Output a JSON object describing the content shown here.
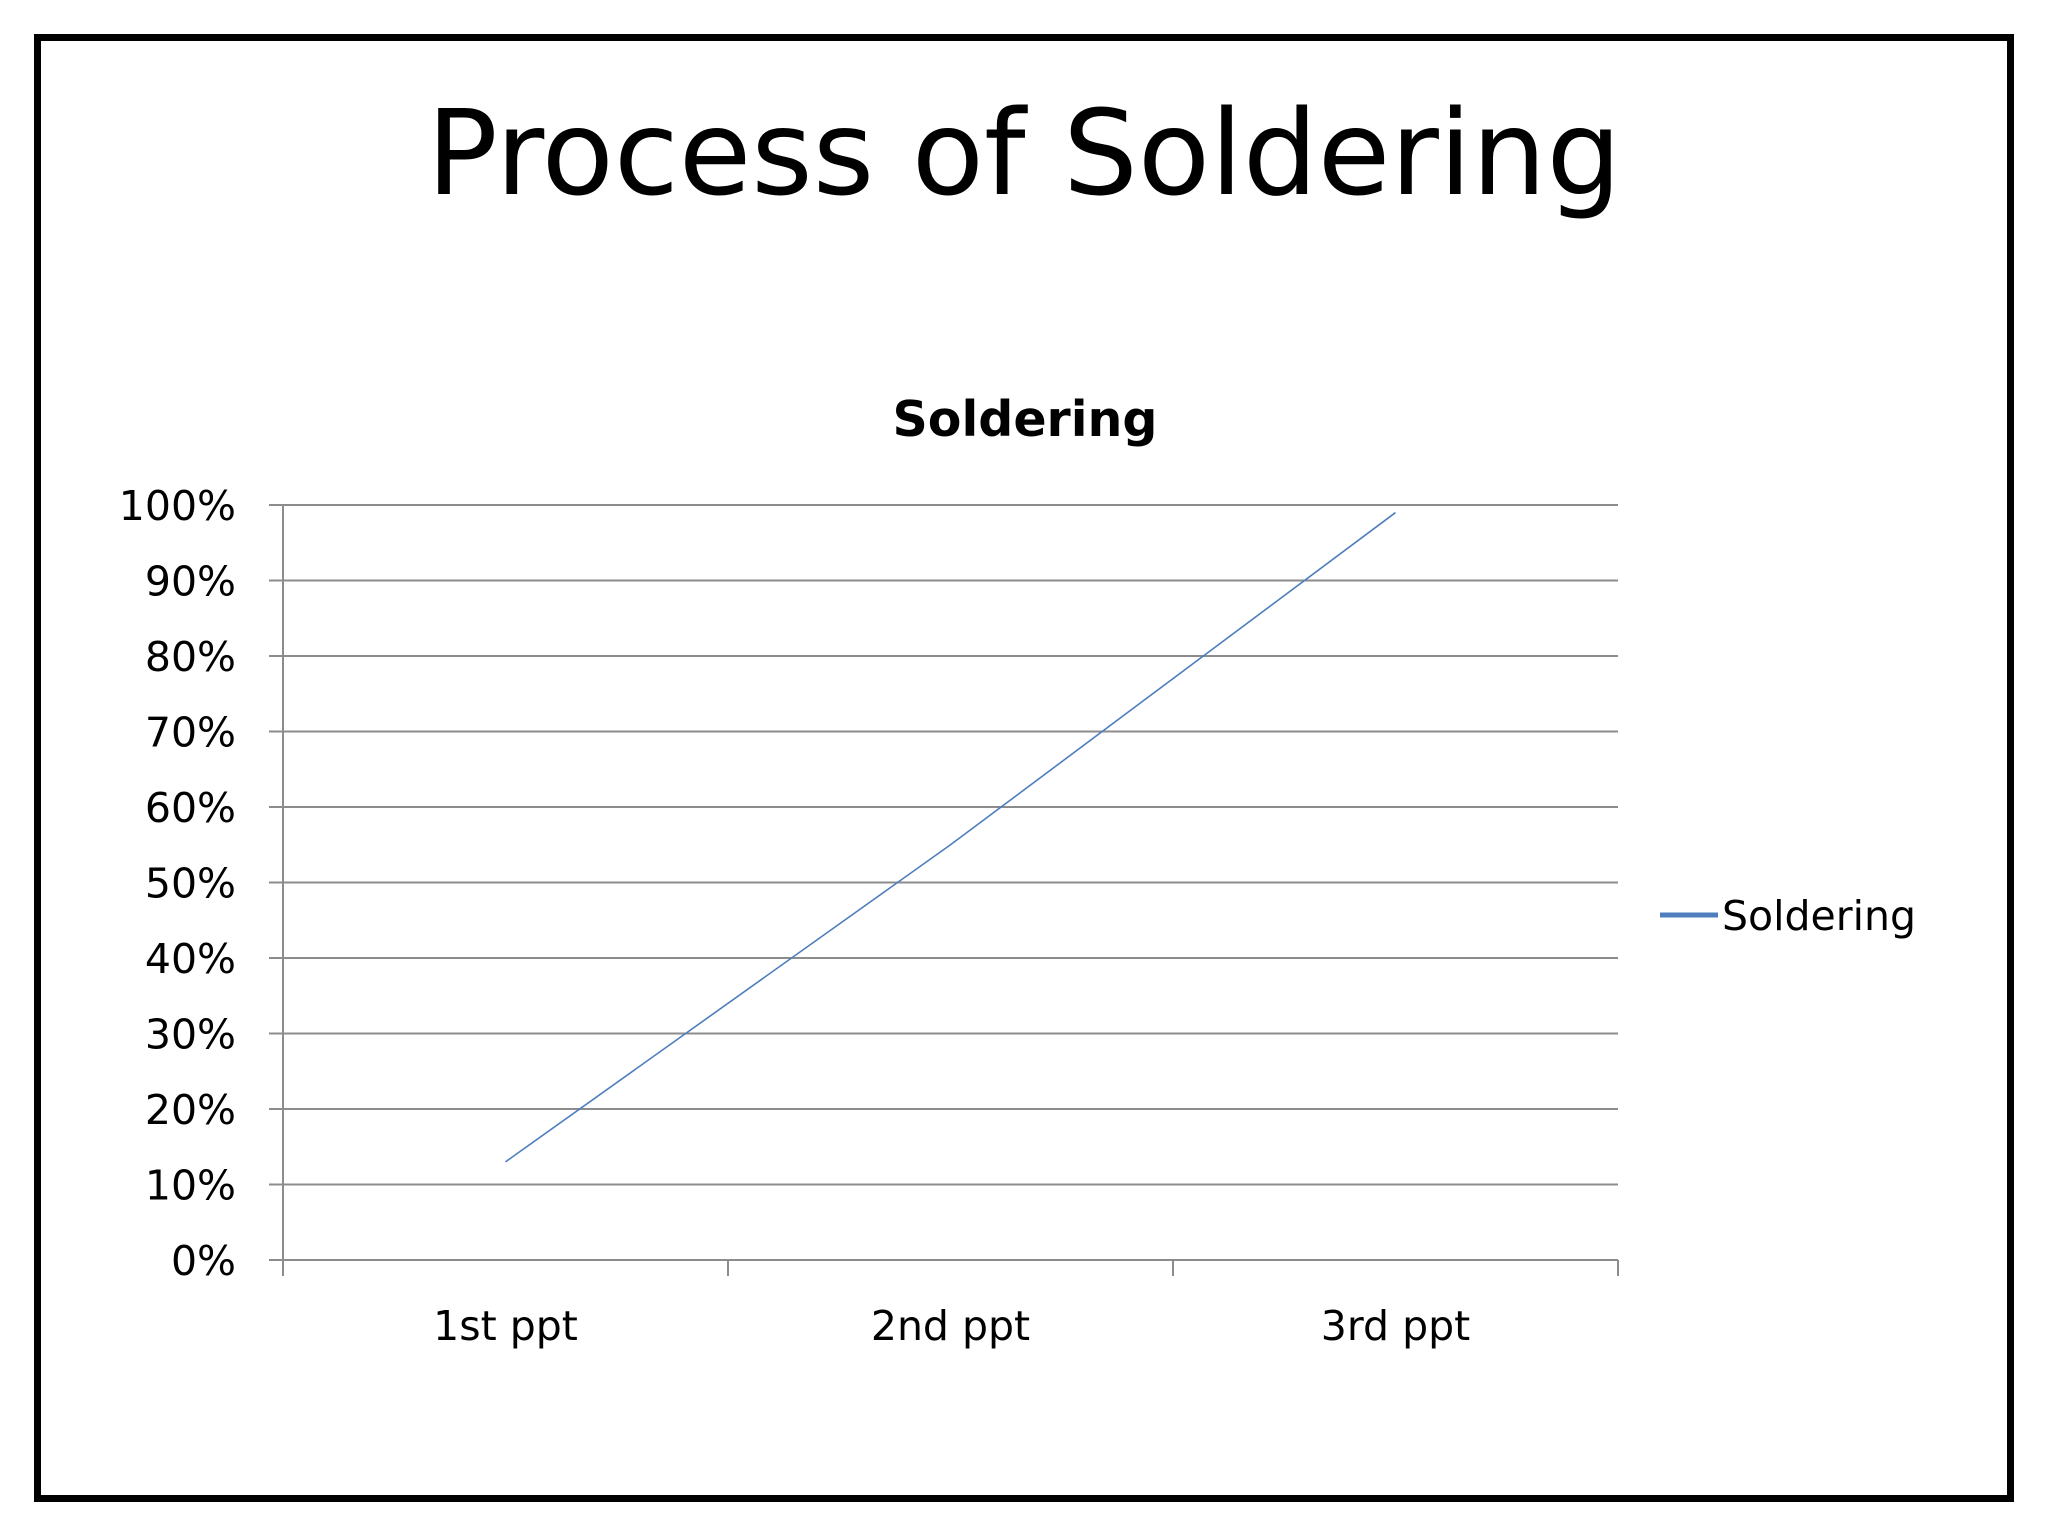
{
  "slide": {
    "title": "Process of Soldering"
  },
  "colors": {
    "series": "#4F7DBD",
    "grid": "#8C8C8C",
    "axis": "#8C8C8C",
    "text": "#000000",
    "frame": "#000000"
  },
  "chart_data": {
    "type": "line",
    "title": "Soldering",
    "xlabel": "",
    "ylabel": "",
    "categories": [
      "1st ppt",
      "2nd ppt",
      "3rd ppt"
    ],
    "series": [
      {
        "name": "Soldering",
        "values": [
          0.13,
          0.55,
          0.99
        ]
      }
    ],
    "ylim": [
      0,
      1
    ],
    "yticks": [
      "0%",
      "10%",
      "20%",
      "30%",
      "40%",
      "50%",
      "60%",
      "70%",
      "80%",
      "90%",
      "100%"
    ],
    "grid": true,
    "legend": "right"
  }
}
